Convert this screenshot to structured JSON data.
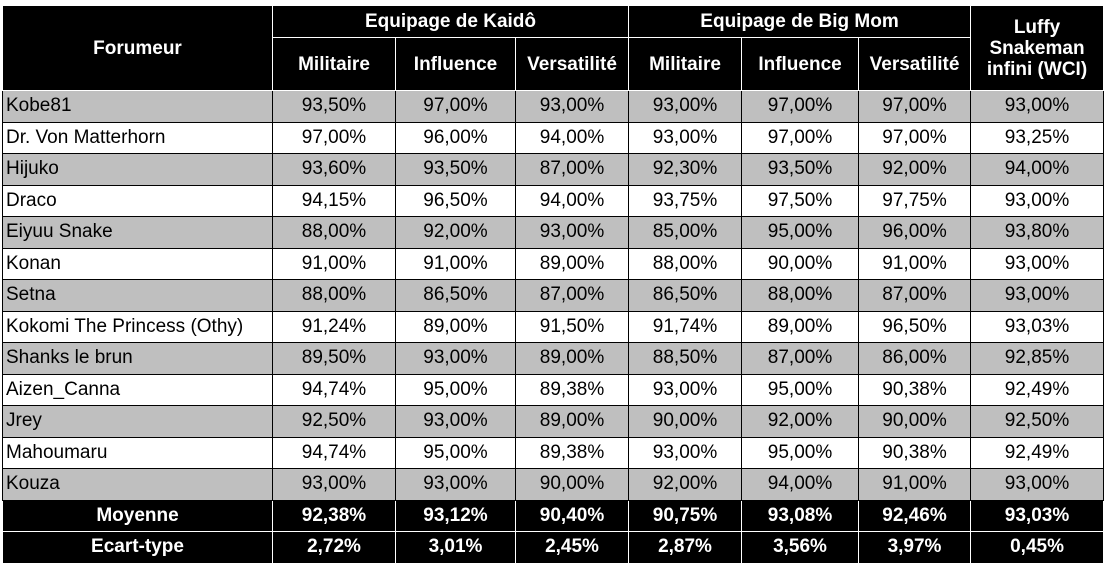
{
  "table": {
    "header": {
      "first": "Forumeur",
      "groups": [
        "Equipage de Kaidô",
        "Equipage de Big Mom"
      ],
      "subcolumns": [
        "Militaire",
        "Influence",
        "Versatilité",
        "Militaire",
        "Influence",
        "Versatilité"
      ],
      "last": "Luffy Snakeman infini (WCI)"
    },
    "rows": [
      [
        "Kobe81",
        "93,50%",
        "97,00%",
        "93,00%",
        "93,00%",
        "97,00%",
        "97,00%",
        "93,00%"
      ],
      [
        "Dr. Von Matterhorn",
        "97,00%",
        "96,00%",
        "94,00%",
        "93,00%",
        "97,00%",
        "97,00%",
        "93,25%"
      ],
      [
        "Hijuko",
        "93,60%",
        "93,50%",
        "87,00%",
        "92,30%",
        "93,50%",
        "92,00%",
        "94,00%"
      ],
      [
        "Draco",
        "94,15%",
        "96,50%",
        "94,00%",
        "93,75%",
        "97,50%",
        "97,75%",
        "93,00%"
      ],
      [
        "Eiyuu Snake",
        "88,00%",
        "92,00%",
        "93,00%",
        "85,00%",
        "95,00%",
        "96,00%",
        "93,80%"
      ],
      [
        "Konan",
        "91,00%",
        "91,00%",
        "89,00%",
        "88,00%",
        "90,00%",
        "91,00%",
        "93,00%"
      ],
      [
        "Setna",
        "88,00%",
        "86,50%",
        "87,00%",
        "86,50%",
        "88,00%",
        "87,00%",
        "93,00%"
      ],
      [
        "Kokomi The Princess (Othy)",
        "91,24%",
        "89,00%",
        "91,50%",
        "91,74%",
        "89,00%",
        "96,50%",
        "93,03%"
      ],
      [
        "Shanks le brun",
        "89,50%",
        "93,00%",
        "89,00%",
        "88,50%",
        "87,00%",
        "86,00%",
        "92,85%"
      ],
      [
        "Aizen_Canna",
        "94,74%",
        "95,00%",
        "89,38%",
        "93,00%",
        "95,00%",
        "90,38%",
        "92,49%"
      ],
      [
        "Jrey",
        "92,50%",
        "93,00%",
        "89,00%",
        "90,00%",
        "92,00%",
        "90,00%",
        "92,50%"
      ],
      [
        "Mahoumaru",
        "94,74%",
        "95,00%",
        "89,38%",
        "93,00%",
        "95,00%",
        "90,38%",
        "92,49%"
      ],
      [
        "Kouza",
        "93,00%",
        "93,00%",
        "90,00%",
        "92,00%",
        "94,00%",
        "91,00%",
        "93,00%"
      ]
    ],
    "summary": [
      [
        "Moyenne",
        "92,38%",
        "93,12%",
        "90,40%",
        "90,75%",
        "93,08%",
        "92,46%",
        "93,03%"
      ],
      [
        "Ecart-type",
        "2,72%",
        "3,01%",
        "2,45%",
        "2,87%",
        "3,56%",
        "3,97%",
        "0,45%"
      ]
    ]
  }
}
